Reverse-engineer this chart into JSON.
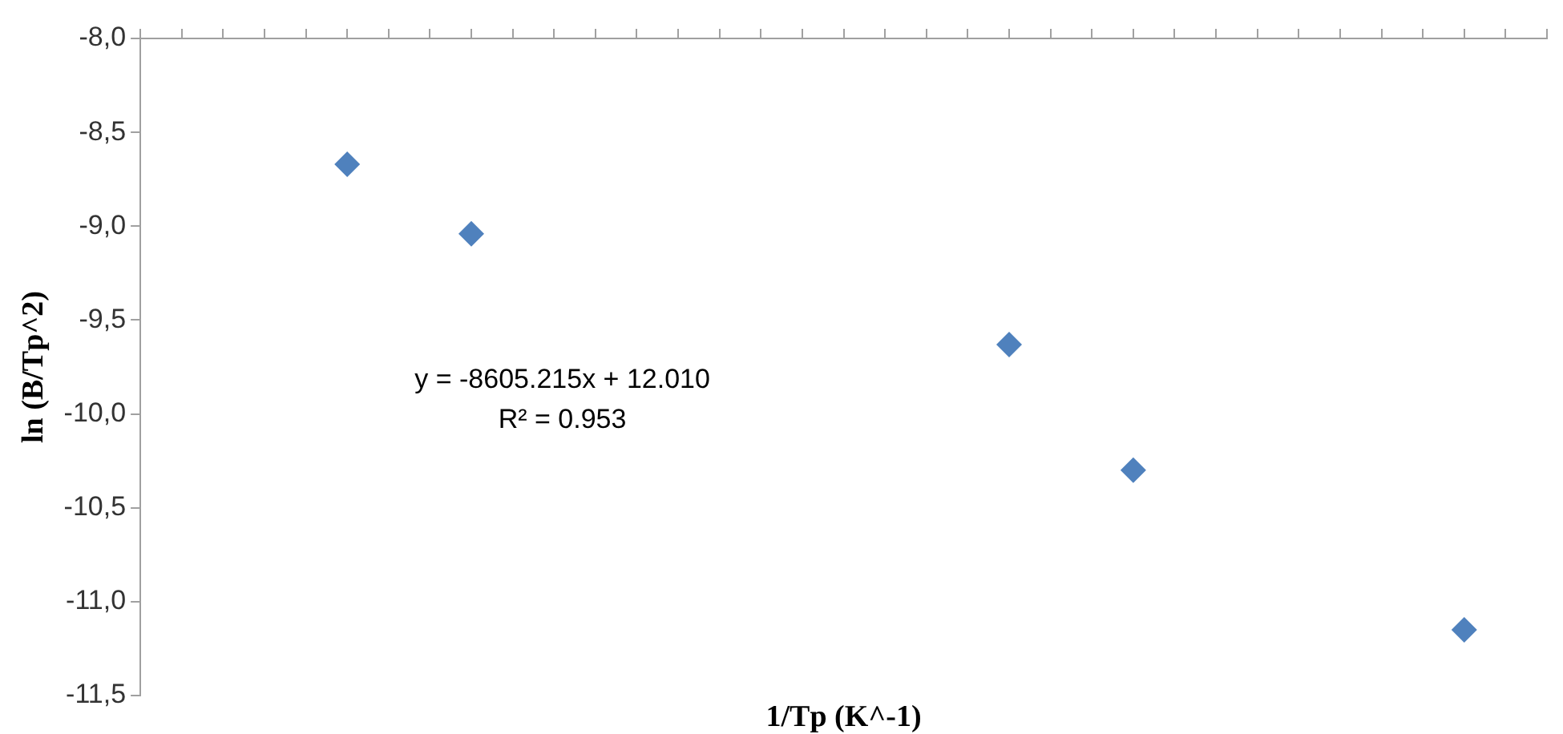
{
  "chart_data": {
    "type": "scatter",
    "xlabel": "1/Tp (K^-1)",
    "ylabel": "ln (B/Tp^2)",
    "categories": [
      null,
      null,
      null,
      null,
      null,
      null,
      null,
      null,
      null,
      null,
      null,
      null,
      null,
      null,
      null,
      null,
      null,
      null,
      null,
      null,
      null,
      null,
      null,
      null,
      null,
      null,
      null,
      null,
      null,
      null,
      null,
      null,
      null,
      null,
      null
    ],
    "series": [
      {
        "color": "#4f81bd",
        "values": [
          null,
          null,
          null,
          null,
          null,
          -8.67,
          null,
          null,
          -9.04,
          null,
          null,
          null,
          null,
          null,
          null,
          null,
          null,
          null,
          null,
          null,
          null,
          -9.63,
          null,
          null,
          -10.3,
          null,
          null,
          null,
          null,
          null,
          null,
          null,
          -11.15,
          null,
          null
        ]
      }
    ],
    "ylim": [
      -11.5,
      -8
    ],
    "yticks": [
      {
        "value": -8,
        "label": "-8,0"
      },
      {
        "value": -8.5,
        "label": "-8,5"
      },
      {
        "value": -9,
        "label": "-9,0"
      },
      {
        "value": -9.5,
        "label": "-9,5"
      },
      {
        "value": -10,
        "label": "-10,0"
      },
      {
        "value": -10.5,
        "label": "-10,5"
      },
      {
        "value": -11,
        "label": "-11,0"
      },
      {
        "value": -11.5,
        "label": "-11,5"
      }
    ],
    "tick_labels": "y",
    "marker": "diamond",
    "grid": false,
    "legend": false,
    "annotations": [
      "y = -8605.215x + 12.010",
      "R² = 0.953"
    ]
  }
}
